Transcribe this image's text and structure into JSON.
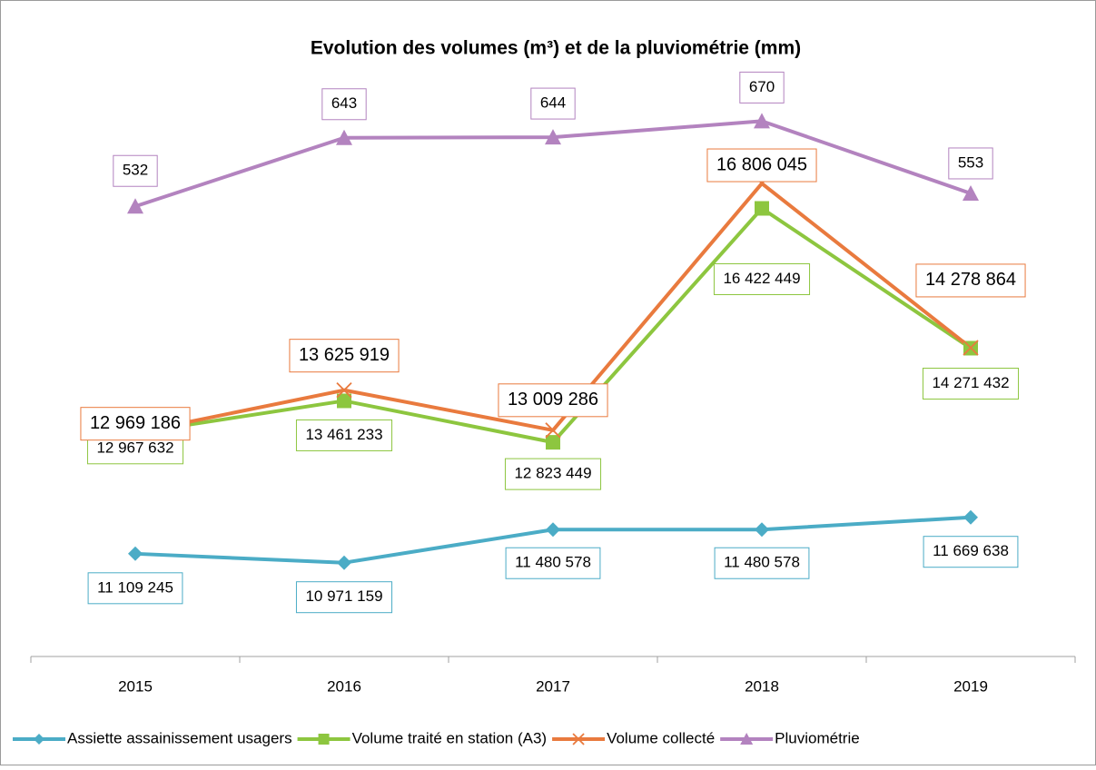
{
  "chart_data": {
    "type": "line",
    "title": "Evolution des volumes (m³) et  de la pluviométrie (mm)",
    "categories": [
      "2015",
      "2016",
      "2017",
      "2018",
      "2019"
    ],
    "ylim": [
      9500000,
      19000000
    ],
    "y2lim": [
      -200,
      800
    ],
    "legend": "bottom",
    "series": [
      {
        "name": "Assiette assainissement usagers",
        "color": "#4bacc6",
        "marker": "diamond",
        "values": [
          11109245,
          10971159,
          11480578,
          11480578,
          11669638
        ],
        "value_labels": [
          "11 109 245",
          "10 971 159",
          "11 480 578",
          "11 480 578",
          "11 669 638"
        ]
      },
      {
        "name": "Volume traité en station (A3)",
        "color": "#8dc63f",
        "marker": "square",
        "values": [
          12967632,
          13461233,
          12823449,
          16422449,
          14271432
        ],
        "value_labels": [
          "12 967 632",
          "13 461 233",
          "12 823 449",
          "16 422 449",
          "14 271 432"
        ]
      },
      {
        "name": "Volume collecté",
        "color": "#e97a3e",
        "marker": "x",
        "values": [
          12969186,
          13625919,
          13009286,
          16806045,
          14278864
        ],
        "value_labels": [
          "12 969 186",
          "13 625 919",
          "13 009 286",
          "16 806 045",
          "14 278 864"
        ]
      },
      {
        "name": "Pluviométrie",
        "color": "#b383bf",
        "marker": "triangle",
        "axis": "y2",
        "values": [
          532,
          643,
          644,
          670,
          553
        ]
      }
    ]
  }
}
